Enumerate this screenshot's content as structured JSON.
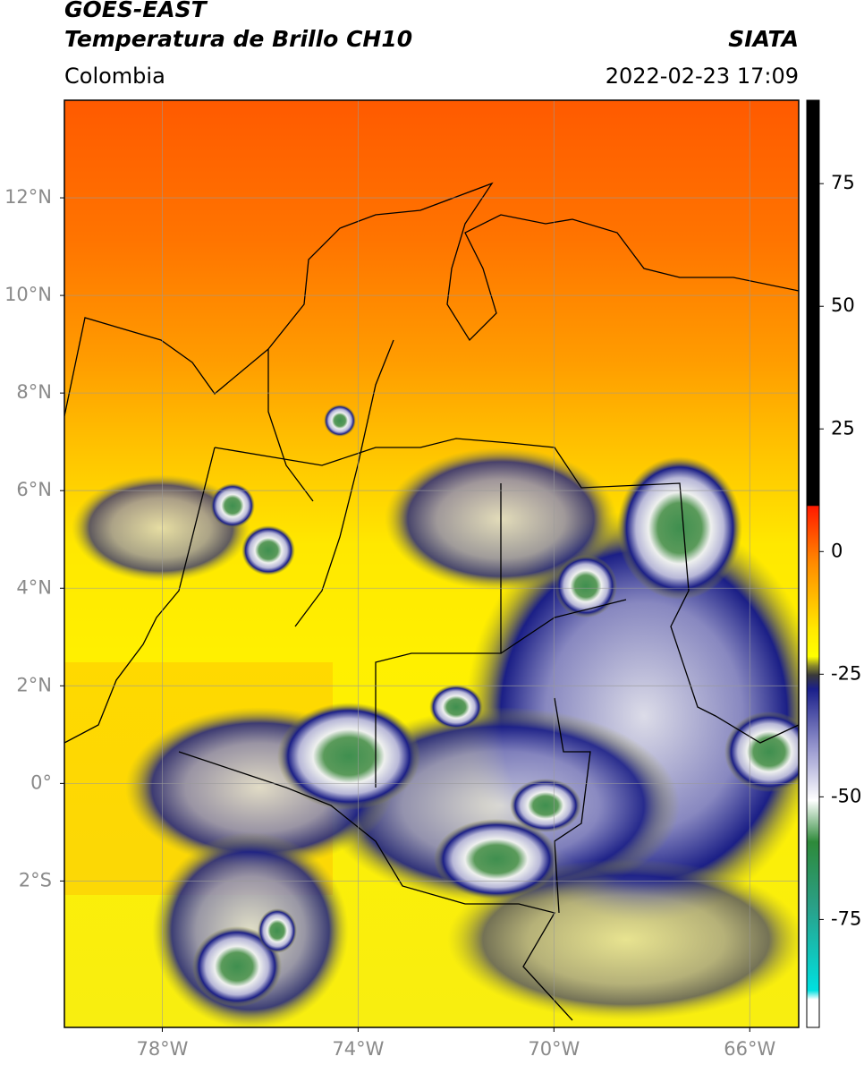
{
  "header": {
    "title": "GOES-EAST",
    "subtitle": "Temperatura de Brillo CH10",
    "region": "Colombia",
    "source": "SIATA",
    "datetime": "2022-02-23 17:09"
  },
  "map": {
    "xlim": [
      -80,
      -65
    ],
    "ylim": [
      -5,
      14
    ],
    "xticks": [
      {
        "value": -78,
        "label": "78°W"
      },
      {
        "value": -74,
        "label": "74°W"
      },
      {
        "value": -70,
        "label": "70°W"
      },
      {
        "value": -66,
        "label": "66°W"
      }
    ],
    "yticks": [
      {
        "value": 12,
        "label": "12°N"
      },
      {
        "value": 10,
        "label": "10°N"
      },
      {
        "value": 8,
        "label": "8°N"
      },
      {
        "value": 6,
        "label": "6°N"
      },
      {
        "value": 4,
        "label": "4°N"
      },
      {
        "value": 2,
        "label": "2°N"
      },
      {
        "value": 0,
        "label": "0°"
      },
      {
        "value": -2,
        "label": "2°S"
      }
    ],
    "grid": true
  },
  "colorbar": {
    "lim": [
      -97,
      92
    ],
    "ticks": [
      75,
      50,
      25,
      0,
      -25,
      -50,
      -75
    ]
  }
}
